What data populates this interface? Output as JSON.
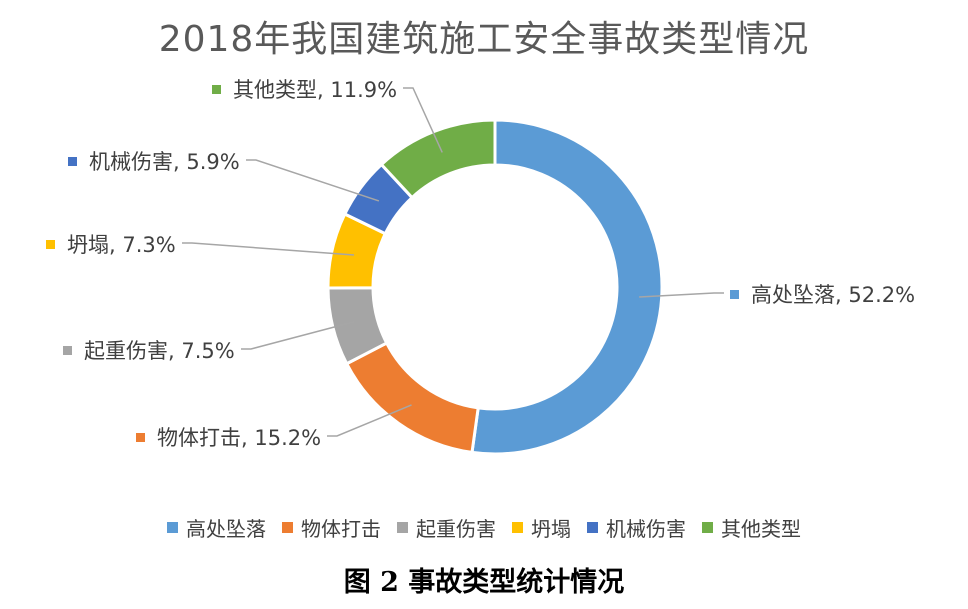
{
  "chart_data": {
    "type": "pie",
    "style": "donut",
    "title": "2018年我国建筑施工安全事故类型情况",
    "categories": [
      "高处坠落",
      "物体打击",
      "起重伤害",
      "坍塌",
      "机械伤害",
      "其他类型"
    ],
    "values": [
      52.2,
      15.2,
      7.5,
      7.3,
      5.9,
      11.9
    ],
    "unit": "%",
    "data_labels": [
      "高处坠落, 52.2%",
      "物体打击, 15.2%",
      "起重伤害, 7.5%",
      "坍塌, 7.3%",
      "机械伤害, 5.9%",
      "其他类型, 11.9%"
    ],
    "colors": [
      "#5B9BD5",
      "#ED7D31",
      "#A5A5A5",
      "#FFC000",
      "#4472C4",
      "#70AD47"
    ],
    "legend_position": "bottom"
  },
  "caption": "图 2   事故类型统计情况"
}
